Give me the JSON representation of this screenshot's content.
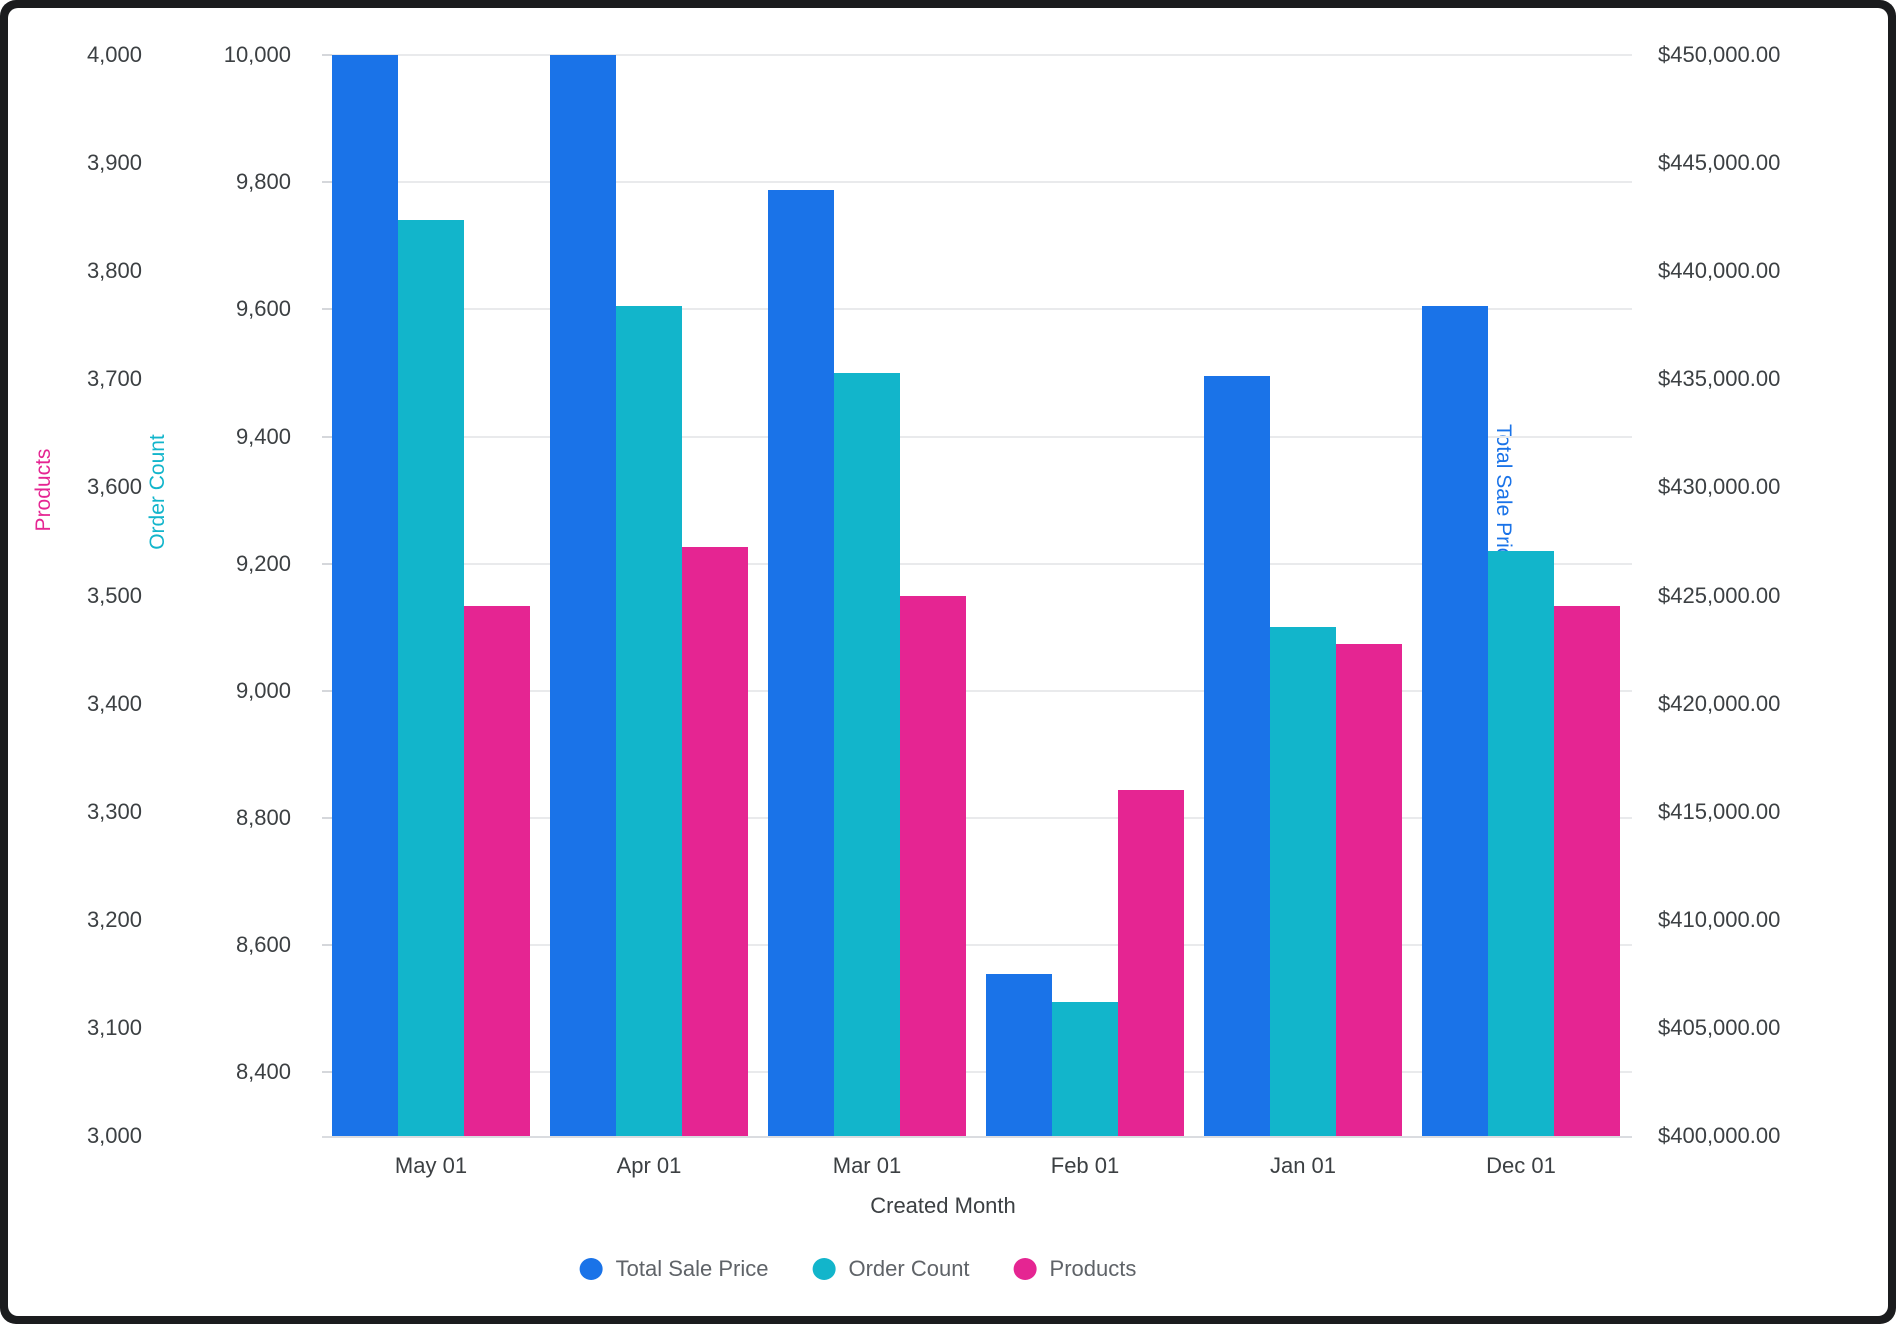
{
  "chart_data": {
    "type": "bar",
    "orientation": "vertical-grouped",
    "categories": [
      "May 01",
      "Apr 01",
      "Mar 01",
      "Feb 01",
      "Jan 01",
      "Dec 01"
    ],
    "series": [
      {
        "name": "Total Sale Price",
        "axis": "sale",
        "color": "#1A73E8",
        "values": [
          450000,
          450000,
          443750,
          407500,
          435150,
          438400
        ]
      },
      {
        "name": "Order Count",
        "axis": "order",
        "color": "#12B5CB",
        "values": [
          9740,
          9605,
          9500,
          8510,
          9100,
          9220
        ]
      },
      {
        "name": "Products",
        "axis": "products",
        "color": "#E52592",
        "values": [
          3490,
          3545,
          3500,
          3320,
          3455,
          3490
        ]
      }
    ],
    "axes": {
      "products": {
        "title": "Products",
        "color": "#E52592",
        "min": 3000,
        "max": 4000,
        "position": "outer-left",
        "ticks": [
          {
            "v": 4000,
            "label": "4,000"
          },
          {
            "v": 3900,
            "label": "3,900"
          },
          {
            "v": 3800,
            "label": "3,800"
          },
          {
            "v": 3700,
            "label": "3,700"
          },
          {
            "v": 3600,
            "label": "3,600"
          },
          {
            "v": 3500,
            "label": "3,500"
          },
          {
            "v": 3400,
            "label": "3,400"
          },
          {
            "v": 3300,
            "label": "3,300"
          },
          {
            "v": 3200,
            "label": "3,200"
          },
          {
            "v": 3100,
            "label": "3,100"
          },
          {
            "v": 3000,
            "label": "3,000"
          }
        ]
      },
      "order": {
        "title": "Order Count",
        "color": "#12B5CB",
        "min": 8300,
        "max": 10000,
        "position": "inner-left",
        "gridlines": true,
        "ticks": [
          {
            "v": 10000,
            "label": "10,000"
          },
          {
            "v": 9800,
            "label": "9,800"
          },
          {
            "v": 9600,
            "label": "9,600"
          },
          {
            "v": 9400,
            "label": "9,400"
          },
          {
            "v": 9200,
            "label": "9,200"
          },
          {
            "v": 9000,
            "label": "9,000"
          },
          {
            "v": 8800,
            "label": "8,800"
          },
          {
            "v": 8600,
            "label": "8,600"
          },
          {
            "v": 8400,
            "label": "8,400"
          }
        ]
      },
      "sale": {
        "title": "Total Sale Price",
        "color": "#1A73E8",
        "min": 400000,
        "max": 450000,
        "position": "right",
        "ticks": [
          {
            "v": 450000,
            "label": "$450,000.00"
          },
          {
            "v": 445000,
            "label": "$445,000.00"
          },
          {
            "v": 440000,
            "label": "$440,000.00"
          },
          {
            "v": 435000,
            "label": "$435,000.00"
          },
          {
            "v": 430000,
            "label": "$430,000.00"
          },
          {
            "v": 425000,
            "label": "$425,000.00"
          },
          {
            "v": 420000,
            "label": "$420,000.00"
          },
          {
            "v": 415000,
            "label": "$415,000.00"
          },
          {
            "v": 410000,
            "label": "$410,000.00"
          },
          {
            "v": 405000,
            "label": "$405,000.00"
          },
          {
            "v": 400000,
            "label": "$400,000.00"
          }
        ]
      }
    },
    "xlabel": "Created Month",
    "legend": {
      "position": "bottom-center",
      "items": [
        {
          "label": "Total Sale Price",
          "color": "#1A73E8"
        },
        {
          "label": "Order Count",
          "color": "#12B5CB"
        },
        {
          "label": "Products",
          "color": "#E52592"
        }
      ]
    },
    "style_colors": {
      "tick_text": "#3c4043",
      "legend_text": "#5f6368",
      "gridline": "#e9eaec",
      "axis_line": "#dadce0",
      "frame_background": "#1b1c1e",
      "panel_background": "#ffffff"
    }
  }
}
